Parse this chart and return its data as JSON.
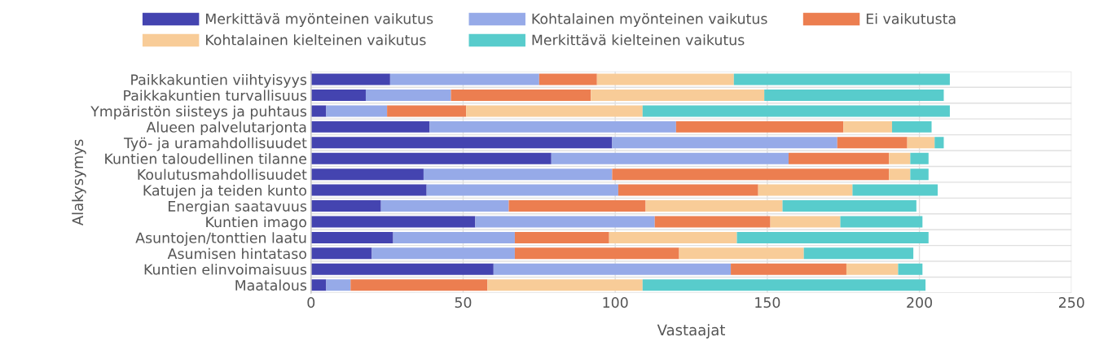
{
  "chart_data": {
    "type": "bar",
    "orientation": "horizontal",
    "stacked": true,
    "xlabel": "Vastaajat",
    "ylabel": "Alakysymys",
    "categories": [
      "Paikkakuntien viihtyisyys",
      "Paikkakuntien turvallisuus",
      "Ympäristön siisteys ja puhtaus",
      "Alueen palvelutarjonta",
      "Työ- ja uramahdollisuudet",
      "Kuntien taloudellinen tilanne",
      "Koulutusmahdollisuudet",
      "Katujen ja teiden kunto",
      "Energian saatavuus",
      "Kuntien imago",
      "Asuntojen/tonttien laatu",
      "Asumisen hintataso",
      "Kuntien elinvoimaisuus",
      "Maatalous"
    ],
    "series": [
      {
        "name": "Merkittävä myönteinen vaikutus",
        "color": "#4444b0",
        "values": [
          26,
          18,
          5,
          39,
          99,
          79,
          37,
          38,
          23,
          54,
          27,
          20,
          60,
          5
        ]
      },
      {
        "name": "Kohtalainen myönteinen vaikutus",
        "color": "#96aae8",
        "values": [
          49,
          28,
          20,
          81,
          74,
          78,
          62,
          63,
          42,
          59,
          40,
          47,
          78,
          8
        ]
      },
      {
        "name": "Ei vaikutusta",
        "color": "#ec7e50",
        "values": [
          19,
          46,
          26,
          55,
          23,
          33,
          91,
          46,
          45,
          38,
          31,
          54,
          38,
          45
        ]
      },
      {
        "name": "Kohtalainen kielteinen vaikutus",
        "color": "#f8cc98",
        "values": [
          45,
          57,
          58,
          16,
          9,
          7,
          7,
          31,
          45,
          23,
          42,
          41,
          17,
          51
        ]
      },
      {
        "name": "Merkittävä kielteinen vaikutus",
        "color": "#58cccc",
        "values": [
          71,
          59,
          101,
          13,
          3,
          6,
          6,
          28,
          44,
          27,
          63,
          36,
          8,
          93
        ]
      }
    ],
    "xlim": [
      0,
      250
    ],
    "xticks": [
      0,
      50,
      100,
      150,
      200,
      250
    ],
    "grid": true,
    "legend": "top"
  }
}
